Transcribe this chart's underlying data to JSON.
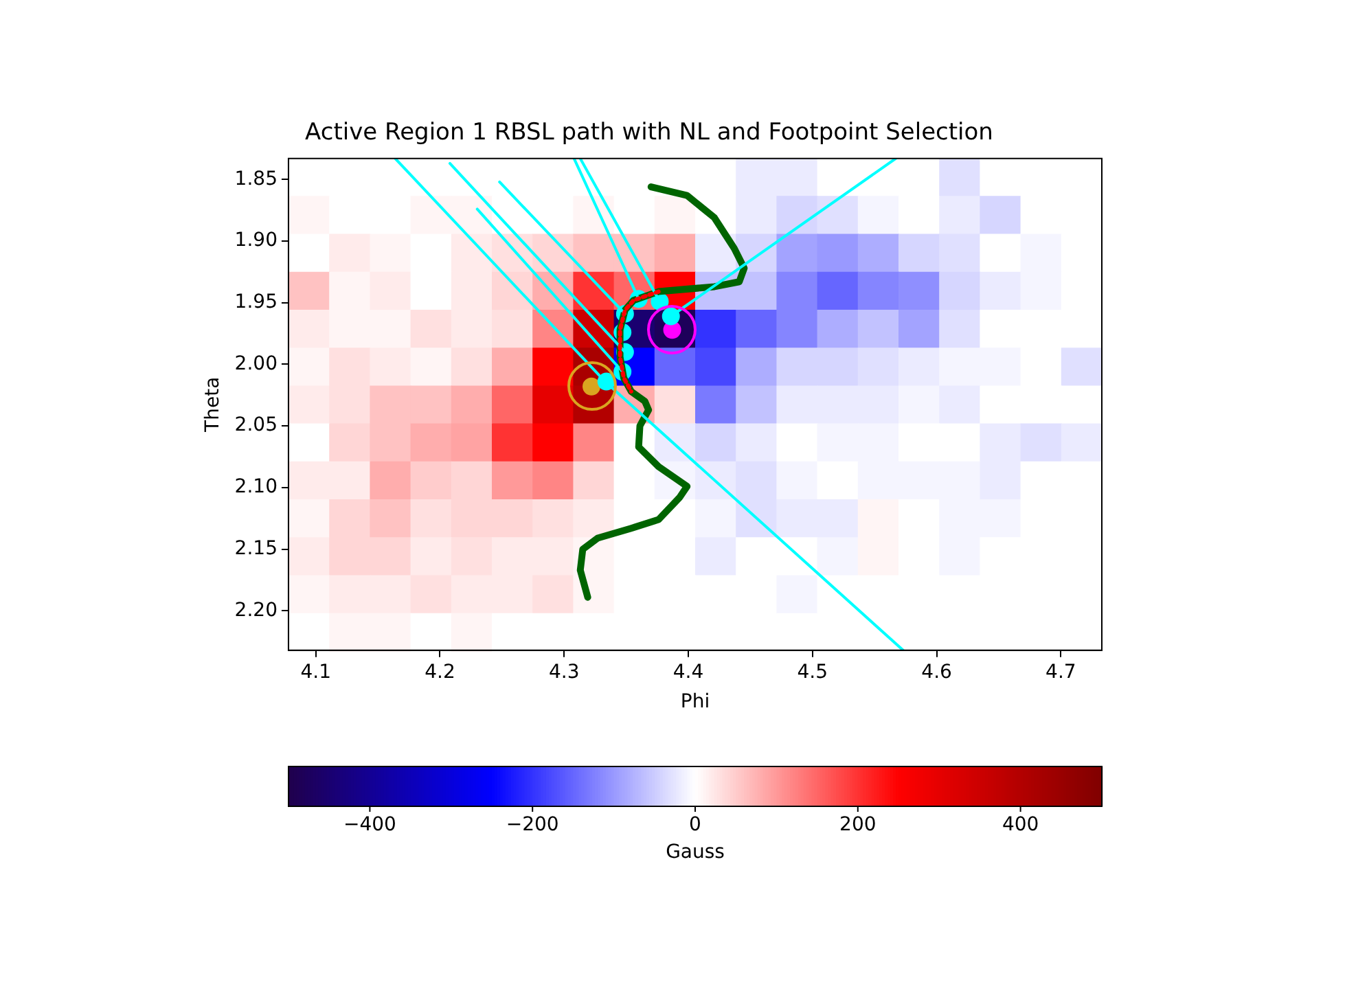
{
  "chart_data": [
    {
      "type": "heatmap",
      "clabel": "Gauss",
      "categories": [
        null,
        null,
        null,
        null,
        null,
        null,
        null,
        null,
        null,
        null,
        null,
        null,
        null,
        null,
        null,
        null,
        null,
        null,
        null,
        null
      ],
      "y_categories": [
        null,
        null,
        null,
        null,
        null,
        null,
        null,
        null,
        null,
        null,
        null,
        null,
        null
      ],
      "clim": [
        -500,
        500
      ],
      "cticks": [
        {
          "value": -400,
          "label": "−400"
        },
        {
          "value": -200,
          "label": "−200"
        },
        0,
        200,
        400
      ],
      "cells": [
        [
          0,
          0,
          0,
          0,
          0,
          0,
          0,
          0,
          0,
          0,
          0,
          -20,
          -20,
          0,
          0,
          0,
          -30,
          0,
          0,
          0
        ],
        [
          10,
          0,
          0,
          10,
          10,
          0,
          0,
          10,
          0,
          10,
          0,
          -20,
          -40,
          -30,
          -10,
          0,
          -20,
          -40,
          0,
          0
        ],
        [
          0,
          20,
          10,
          0,
          20,
          30,
          40,
          60,
          60,
          80,
          -20,
          -40,
          -90,
          -100,
          -80,
          -40,
          -30,
          0,
          -10,
          0
        ],
        [
          60,
          10,
          20,
          0,
          20,
          40,
          80,
          200,
          150,
          250,
          -60,
          -60,
          -120,
          -150,
          -120,
          -110,
          -40,
          -20,
          -10,
          0
        ],
        [
          20,
          10,
          10,
          30,
          20,
          30,
          120,
          350,
          -450,
          -480,
          -200,
          -150,
          -120,
          -80,
          -60,
          -90,
          -30,
          0,
          0,
          0
        ],
        [
          10,
          30,
          20,
          10,
          30,
          80,
          250,
          420,
          -250,
          -150,
          -180,
          -80,
          -40,
          -40,
          -30,
          -20,
          -10,
          -10,
          0,
          -30
        ],
        [
          20,
          30,
          60,
          60,
          80,
          150,
          300,
          400,
          80,
          30,
          -130,
          -60,
          -20,
          -20,
          -20,
          -10,
          -20,
          0,
          0,
          0
        ],
        [
          0,
          40,
          60,
          80,
          90,
          200,
          250,
          120,
          0,
          -20,
          -40,
          -20,
          0,
          -10,
          -10,
          0,
          0,
          -20,
          -30,
          -20
        ],
        [
          20,
          20,
          80,
          50,
          40,
          100,
          120,
          40,
          0,
          -10,
          -20,
          -30,
          -10,
          0,
          -10,
          -10,
          -10,
          -20,
          0,
          0
        ],
        [
          10,
          40,
          60,
          30,
          40,
          40,
          30,
          20,
          0,
          0,
          -10,
          -30,
          -20,
          -20,
          10,
          0,
          -10,
          -10,
          0,
          0
        ],
        [
          20,
          40,
          40,
          20,
          30,
          20,
          20,
          10,
          0,
          0,
          -20,
          0,
          0,
          -10,
          10,
          0,
          -10,
          0,
          0,
          0
        ],
        [
          10,
          20,
          20,
          30,
          20,
          20,
          30,
          10,
          0,
          0,
          0,
          0,
          -10,
          0,
          0,
          0,
          0,
          0,
          0,
          0
        ],
        [
          0,
          10,
          10,
          0,
          10,
          0,
          0,
          0,
          0,
          0,
          0,
          0,
          0,
          0,
          0,
          0,
          0,
          0,
          0,
          0
        ]
      ]
    },
    {
      "type": "line",
      "title": "Active Region 1 RBSL path with NL and Footpoint Selection",
      "xlabel": "Phi",
      "ylabel": "Theta",
      "xlim": [
        4.078,
        4.733
      ],
      "ylim": [
        2.232,
        1.833
      ],
      "xticks": [
        4.1,
        4.2,
        4.3,
        4.4,
        4.5,
        4.6,
        4.7
      ],
      "yticks": [
        1.85,
        {
          "value": 1.9,
          "label": "1.90"
        },
        1.95,
        {
          "value": 2.0,
          "label": "2.00"
        },
        2.05,
        {
          "value": 2.1,
          "label": "2.10"
        },
        2.15,
        {
          "value": 2.2,
          "label": "2.20"
        }
      ],
      "grid": false,
      "legend": false,
      "series": [
        {
          "type": "line",
          "color": "#00ffff",
          "marker": "none",
          "x": [
            4.164,
            4.333,
            4.573
          ],
          "values": [
            1.833,
            2.014,
            2.232
          ]
        },
        {
          "type": "line",
          "color": "#00ffff",
          "marker": "none",
          "x": [
            4.208,
            4.349
          ],
          "values": [
            1.837,
            1.99
          ]
        },
        {
          "type": "line",
          "color": "#00ffff",
          "marker": "none",
          "x": [
            4.23,
            4.347
          ],
          "values": [
            1.874,
            2.006
          ]
        },
        {
          "type": "line",
          "color": "#00ffff",
          "marker": "none",
          "x": [
            4.248,
            4.349
          ],
          "values": [
            1.852,
            1.959
          ]
        },
        {
          "type": "line",
          "color": "#00ffff",
          "marker": "none",
          "x": [
            4.308,
            4.36
          ],
          "values": [
            1.833,
            1.947
          ]
        },
        {
          "type": "line",
          "color": "#00ffff",
          "marker": "none",
          "x": [
            4.313,
            4.377
          ],
          "values": [
            1.833,
            1.949
          ]
        },
        {
          "type": "line",
          "color": "#00ffff",
          "marker": "none",
          "x": [
            4.386,
            4.567
          ],
          "values": [
            1.961,
            1.833
          ]
        },
        {
          "type": "line",
          "color": "#006400",
          "marker": "none",
          "line_style": "solid",
          "x": [
            4.37,
            4.399,
            4.421,
            4.437,
            4.445,
            4.441,
            4.421,
            4.376,
            4.356,
            4.349,
            4.345,
            4.345,
            4.348,
            4.354,
            4.365,
            4.368,
            4.361,
            4.36,
            4.376,
            4.399,
            4.393,
            4.376,
            4.354,
            4.327,
            4.315,
            4.313,
            4.319
          ],
          "values": [
            1.856,
            1.863,
            1.881,
            1.906,
            1.922,
            1.933,
            1.937,
            1.941,
            1.948,
            1.956,
            1.972,
            1.994,
            2.011,
            2.022,
            2.03,
            2.037,
            2.05,
            2.067,
            2.083,
            2.099,
            2.108,
            2.126,
            2.133,
            2.141,
            2.15,
            2.167,
            2.189
          ]
        },
        {
          "type": "line",
          "color": "#ff0000",
          "marker": "none",
          "line_style": "dotted",
          "x": [
            4.376,
            4.356,
            4.349,
            4.345,
            4.345,
            4.348,
            4.354
          ],
          "values": [
            1.941,
            1.948,
            1.956,
            1.972,
            1.994,
            2.011,
            2.022
          ]
        },
        {
          "type": "scatter",
          "color": "#00ffff",
          "marker": "circle",
          "x": [
            4.36,
            4.377,
            4.349,
            4.386,
            4.347,
            4.349,
            4.347,
            4.334
          ],
          "values": [
            1.947,
            1.949,
            1.959,
            1.961,
            1.974,
            1.99,
            2.006,
            2.014
          ]
        },
        {
          "type": "scatter",
          "color": "#ff00ff",
          "marker": "circle",
          "x": [
            4.387
          ],
          "values": [
            1.972
          ]
        },
        {
          "type": "scatter",
          "color": "#daa520",
          "marker": "circle",
          "x": [
            4.322
          ],
          "values": [
            2.018
          ]
        }
      ]
    }
  ]
}
